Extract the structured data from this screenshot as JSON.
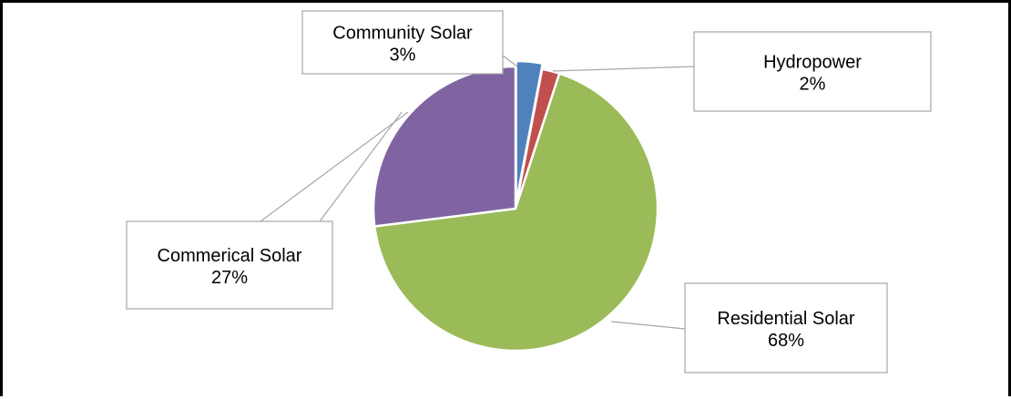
{
  "chart_data": {
    "type": "pie",
    "title": "",
    "slices": [
      {
        "label": "Community Solar",
        "value": 3,
        "value_label": "3%",
        "color": "#4F81BD"
      },
      {
        "label": "Hydropower",
        "value": 2,
        "value_label": "2%",
        "color": "#C0504D"
      },
      {
        "label": "Residential Solar",
        "value": 68,
        "value_label": "68%",
        "color": "#9BBB59"
      },
      {
        "label": "Commerical Solar",
        "value": 27,
        "value_label": "27%",
        "color": "#8064A2"
      }
    ],
    "legend": "none",
    "data_labels": "callouts"
  }
}
